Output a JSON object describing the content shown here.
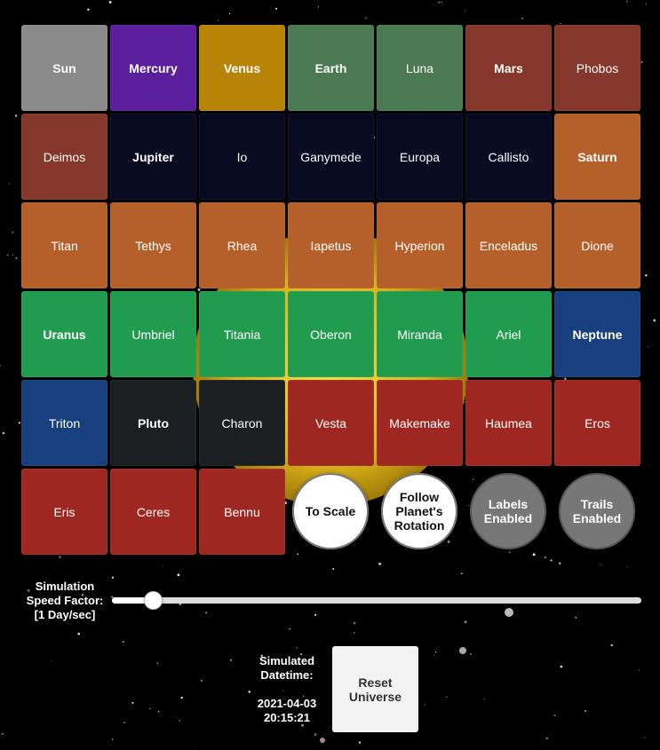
{
  "colors": {
    "sun": "#8a8a8a",
    "mercury": "#5b1f9e",
    "venus": "#b88408",
    "earth": "#4b7a52",
    "mars": "#86372c",
    "jupiter": "#080a22",
    "saturn": "#b5602a",
    "uranus": "#219b4e",
    "neptune": "#183f7e",
    "pluto": "#1b1f21",
    "minor": "#9f2721"
  },
  "bodies": [
    {
      "label": "Sun",
      "color": "sun",
      "planet": true
    },
    {
      "label": "Mercury",
      "color": "mercury",
      "planet": true
    },
    {
      "label": "Venus",
      "color": "venus",
      "planet": true
    },
    {
      "label": "Earth",
      "color": "earth",
      "planet": true
    },
    {
      "label": "Luna",
      "color": "earth",
      "planet": false
    },
    {
      "label": "Mars",
      "color": "mars",
      "planet": true
    },
    {
      "label": "Phobos",
      "color": "mars",
      "planet": false
    },
    {
      "label": "Deimos",
      "color": "mars",
      "planet": false
    },
    {
      "label": "Jupiter",
      "color": "jupiter",
      "planet": true
    },
    {
      "label": "Io",
      "color": "jupiter",
      "planet": false
    },
    {
      "label": "Ganymede",
      "color": "jupiter",
      "planet": false
    },
    {
      "label": "Europa",
      "color": "jupiter",
      "planet": false
    },
    {
      "label": "Callisto",
      "color": "jupiter",
      "planet": false
    },
    {
      "label": "Saturn",
      "color": "saturn",
      "planet": true
    },
    {
      "label": "Titan",
      "color": "saturn",
      "planet": false
    },
    {
      "label": "Tethys",
      "color": "saturn",
      "planet": false
    },
    {
      "label": "Rhea",
      "color": "saturn",
      "planet": false
    },
    {
      "label": "Iapetus",
      "color": "saturn",
      "planet": false
    },
    {
      "label": "Hyperion",
      "color": "saturn",
      "planet": false
    },
    {
      "label": "Enceladus",
      "color": "saturn",
      "planet": false
    },
    {
      "label": "Dione",
      "color": "saturn",
      "planet": false
    },
    {
      "label": "Uranus",
      "color": "uranus",
      "planet": true
    },
    {
      "label": "Umbriel",
      "color": "uranus",
      "planet": false
    },
    {
      "label": "Titania",
      "color": "uranus",
      "planet": false
    },
    {
      "label": "Oberon",
      "color": "uranus",
      "planet": false
    },
    {
      "label": "Miranda",
      "color": "uranus",
      "planet": false
    },
    {
      "label": "Ariel",
      "color": "uranus",
      "planet": false
    },
    {
      "label": "Neptune",
      "color": "neptune",
      "planet": true
    },
    {
      "label": "Triton",
      "color": "neptune",
      "planet": false
    },
    {
      "label": "Pluto",
      "color": "pluto",
      "planet": true
    },
    {
      "label": "Charon",
      "color": "pluto",
      "planet": false
    },
    {
      "label": "Vesta",
      "color": "minor",
      "planet": false
    },
    {
      "label": "Makemake",
      "color": "minor",
      "planet": false
    },
    {
      "label": "Haumea",
      "color": "minor",
      "planet": false
    },
    {
      "label": "Eros",
      "color": "minor",
      "planet": false
    },
    {
      "label": "Eris",
      "color": "minor",
      "planet": false
    },
    {
      "label": "Ceres",
      "color": "minor",
      "planet": false
    },
    {
      "label": "Bennu",
      "color": "minor",
      "planet": false
    }
  ],
  "toggles": [
    {
      "name": "to-scale-toggle",
      "lines": [
        "To Scale"
      ],
      "enabled": true
    },
    {
      "name": "follow-rotation-toggle",
      "lines": [
        "Follow",
        "Planet's",
        "Rotation"
      ],
      "enabled": true
    },
    {
      "name": "labels-toggle",
      "lines": [
        "Labels",
        "Enabled"
      ],
      "enabled": false
    },
    {
      "name": "trails-toggle",
      "lines": [
        "Trails",
        "Enabled"
      ],
      "enabled": false
    }
  ],
  "speed": {
    "label_lines": [
      "Simulation",
      "Speed Factor:",
      "[1 Day/sec]"
    ],
    "value_fraction": 0.078
  },
  "datetime": {
    "label_lines": [
      "Simulated",
      "Datetime:"
    ],
    "date": "2021-04-03",
    "time": "20:15:21"
  },
  "reset": {
    "lines": [
      "Reset",
      "Universe"
    ]
  }
}
